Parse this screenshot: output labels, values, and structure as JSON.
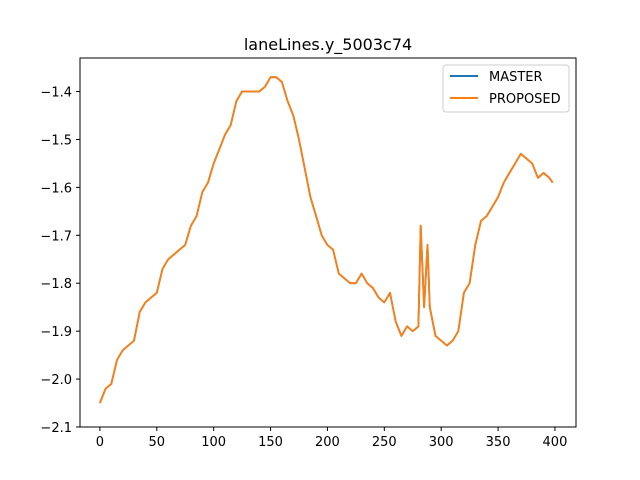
{
  "chart_data": {
    "type": "line",
    "title": "laneLines.y_5003c74",
    "xlabel": "",
    "ylabel": "",
    "xlim": [
      -17.5,
      418.5
    ],
    "ylim": [
      -2.1,
      -1.33
    ],
    "xticks": [
      0,
      50,
      100,
      150,
      200,
      250,
      300,
      350,
      400
    ],
    "yticks": [
      -2.1,
      -2.0,
      -1.9,
      -1.8,
      -1.7,
      -1.6,
      -1.5,
      -1.4
    ],
    "ytick_labels": [
      "−2.1",
      "−2.0",
      "−1.9",
      "−1.8",
      "−1.7",
      "−1.6",
      "−1.5",
      "−1.4"
    ],
    "grid": false,
    "legend_position": "top-right",
    "colors": {
      "master": "#1f77b4",
      "proposed": "#ff7f0e"
    },
    "x": [
      0,
      5,
      10,
      15,
      20,
      25,
      30,
      35,
      40,
      45,
      50,
      55,
      60,
      65,
      70,
      75,
      80,
      85,
      90,
      95,
      100,
      105,
      110,
      115,
      120,
      125,
      130,
      135,
      140,
      145,
      150,
      155,
      160,
      165,
      170,
      175,
      180,
      185,
      190,
      195,
      200,
      205,
      210,
      215,
      220,
      225,
      230,
      235,
      240,
      245,
      250,
      255,
      260,
      265,
      270,
      275,
      280,
      282,
      285,
      288,
      290,
      295,
      300,
      305,
      310,
      315,
      320,
      325,
      330,
      335,
      340,
      345,
      350,
      355,
      360,
      365,
      370,
      375,
      380,
      385,
      390,
      395,
      398
    ],
    "series": [
      {
        "name": "MASTER",
        "values": [
          -2.05,
          -2.02,
          -2.01,
          -1.96,
          -1.94,
          -1.93,
          -1.92,
          -1.86,
          -1.84,
          -1.83,
          -1.82,
          -1.77,
          -1.75,
          -1.74,
          -1.73,
          -1.72,
          -1.68,
          -1.66,
          -1.61,
          -1.59,
          -1.55,
          -1.52,
          -1.49,
          -1.47,
          -1.42,
          -1.4,
          -1.4,
          -1.4,
          -1.4,
          -1.39,
          -1.37,
          -1.37,
          -1.38,
          -1.42,
          -1.45,
          -1.5,
          -1.56,
          -1.62,
          -1.66,
          -1.7,
          -1.72,
          -1.73,
          -1.78,
          -1.79,
          -1.8,
          -1.8,
          -1.78,
          -1.8,
          -1.81,
          -1.83,
          -1.84,
          -1.82,
          -1.88,
          -1.91,
          -1.89,
          -1.9,
          -1.89,
          -1.68,
          -1.85,
          -1.72,
          -1.85,
          -1.91,
          -1.92,
          -1.93,
          -1.92,
          -1.9,
          -1.82,
          -1.8,
          -1.72,
          -1.67,
          -1.66,
          -1.64,
          -1.62,
          -1.59,
          -1.57,
          -1.55,
          -1.53,
          -1.54,
          -1.55,
          -1.58,
          -1.57,
          -1.58,
          -1.59
        ]
      },
      {
        "name": "PROPOSED",
        "values": [
          -2.05,
          -2.02,
          -2.01,
          -1.96,
          -1.94,
          -1.93,
          -1.92,
          -1.86,
          -1.84,
          -1.83,
          -1.82,
          -1.77,
          -1.75,
          -1.74,
          -1.73,
          -1.72,
          -1.68,
          -1.66,
          -1.61,
          -1.59,
          -1.55,
          -1.52,
          -1.49,
          -1.47,
          -1.42,
          -1.4,
          -1.4,
          -1.4,
          -1.4,
          -1.39,
          -1.37,
          -1.37,
          -1.38,
          -1.42,
          -1.45,
          -1.5,
          -1.56,
          -1.62,
          -1.66,
          -1.7,
          -1.72,
          -1.73,
          -1.78,
          -1.79,
          -1.8,
          -1.8,
          -1.78,
          -1.8,
          -1.81,
          -1.83,
          -1.84,
          -1.82,
          -1.88,
          -1.91,
          -1.89,
          -1.9,
          -1.89,
          -1.68,
          -1.85,
          -1.72,
          -1.85,
          -1.91,
          -1.92,
          -1.93,
          -1.92,
          -1.9,
          -1.82,
          -1.8,
          -1.72,
          -1.67,
          -1.66,
          -1.64,
          -1.62,
          -1.59,
          -1.57,
          -1.55,
          -1.53,
          -1.54,
          -1.55,
          -1.58,
          -1.57,
          -1.58,
          -1.59
        ]
      }
    ]
  }
}
